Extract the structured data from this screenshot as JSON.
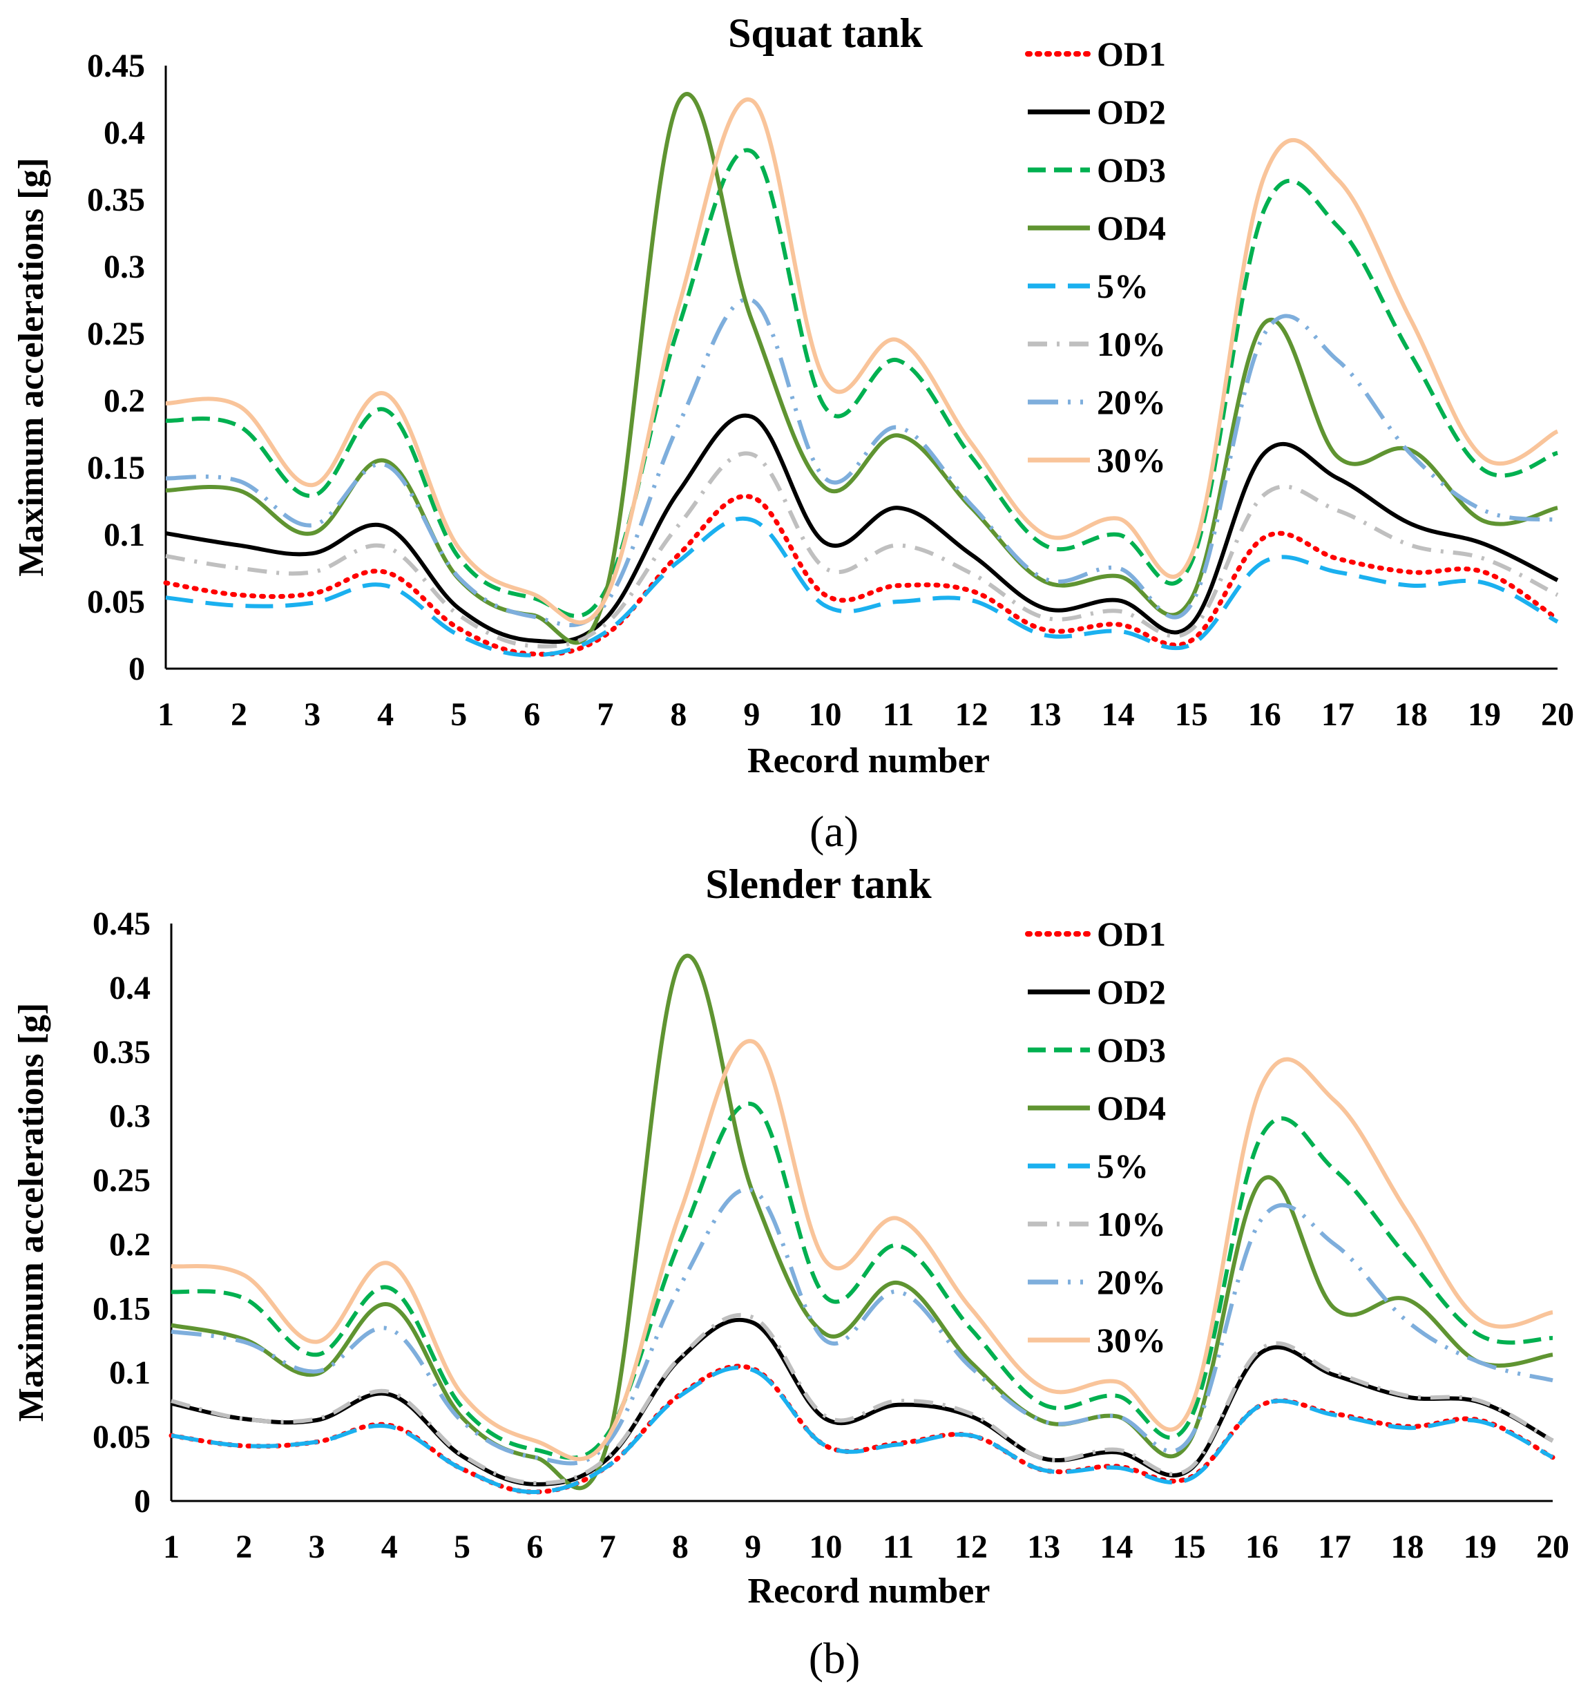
{
  "chart_data": [
    {
      "type": "line",
      "title": "Squat tank",
      "panel_label": "(a)",
      "xlabel": "Record number",
      "ylabel": "Maximum accelerations [g]",
      "xlim": [
        1,
        20
      ],
      "ylim": [
        0,
        0.45
      ],
      "x": [
        1,
        2,
        3,
        4,
        5,
        6,
        7,
        8,
        9,
        10,
        11,
        12,
        13,
        14,
        15,
        16,
        17,
        18,
        19,
        20
      ],
      "x_ticks": [
        "1",
        "2",
        "3",
        "4",
        "5",
        "6",
        "7",
        "8",
        "9",
        "10",
        "11",
        "12",
        "13",
        "14",
        "15",
        "16",
        "17",
        "18",
        "19",
        "20"
      ],
      "y_ticks": [
        "0",
        "0.05",
        "0.1",
        "0.15",
        "0.2",
        "0.25",
        "0.3",
        "0.35",
        "0.4",
        "0.45"
      ],
      "legend_position": "top-right",
      "grid": false,
      "series": [
        {
          "name": "OD1",
          "color": "#ff0000",
          "style": "dotted",
          "values": [
            0.064,
            0.055,
            0.056,
            0.072,
            0.03,
            0.011,
            0.025,
            0.085,
            0.128,
            0.055,
            0.062,
            0.058,
            0.029,
            0.033,
            0.021,
            0.098,
            0.082,
            0.072,
            0.072,
            0.037
          ]
        },
        {
          "name": "OD2",
          "color": "#000000",
          "style": "solid",
          "values": [
            0.101,
            0.092,
            0.086,
            0.106,
            0.045,
            0.021,
            0.037,
            0.132,
            0.188,
            0.094,
            0.12,
            0.085,
            0.045,
            0.051,
            0.033,
            0.161,
            0.142,
            0.108,
            0.093,
            0.066
          ]
        },
        {
          "name": "OD3",
          "color": "#00b050",
          "style": "dashed",
          "values": [
            0.185,
            0.181,
            0.129,
            0.193,
            0.083,
            0.053,
            0.058,
            0.255,
            0.386,
            0.195,
            0.23,
            0.158,
            0.092,
            0.1,
            0.079,
            0.343,
            0.33,
            0.234,
            0.148,
            0.161
          ]
        },
        {
          "name": "OD4",
          "color": "#5f9431",
          "style": "solid",
          "values": [
            0.133,
            0.133,
            0.101,
            0.155,
            0.067,
            0.04,
            0.055,
            0.423,
            0.26,
            0.135,
            0.174,
            0.12,
            0.065,
            0.069,
            0.052,
            0.258,
            0.158,
            0.163,
            0.11,
            0.12
          ]
        },
        {
          "name": "5%",
          "color": "#1ab0ef",
          "style": "longdash",
          "values": [
            0.053,
            0.047,
            0.049,
            0.062,
            0.025,
            0.01,
            0.027,
            0.08,
            0.111,
            0.047,
            0.05,
            0.051,
            0.025,
            0.028,
            0.018,
            0.08,
            0.072,
            0.062,
            0.064,
            0.035
          ]
        },
        {
          "name": "10%",
          "color": "#bfbfbf",
          "style": "dashdot",
          "values": [
            0.084,
            0.075,
            0.072,
            0.091,
            0.04,
            0.017,
            0.033,
            0.107,
            0.16,
            0.075,
            0.092,
            0.071,
            0.038,
            0.043,
            0.029,
            0.13,
            0.118,
            0.092,
            0.082,
            0.055
          ]
        },
        {
          "name": "20%",
          "color": "#7eaedc",
          "style": "longdashdotdot",
          "values": [
            0.142,
            0.14,
            0.107,
            0.152,
            0.068,
            0.039,
            0.048,
            0.182,
            0.275,
            0.142,
            0.18,
            0.122,
            0.067,
            0.075,
            0.048,
            0.25,
            0.23,
            0.16,
            0.118,
            0.111
          ]
        },
        {
          "name": "30%",
          "color": "#f9c49a",
          "style": "solid",
          "values": [
            0.198,
            0.196,
            0.137,
            0.205,
            0.09,
            0.056,
            0.052,
            0.27,
            0.424,
            0.215,
            0.245,
            0.168,
            0.1,
            0.112,
            0.084,
            0.368,
            0.365,
            0.26,
            0.157,
            0.177
          ]
        }
      ]
    },
    {
      "type": "line",
      "title": "Slender tank",
      "panel_label": "(b)",
      "xlabel": "Record number",
      "ylabel": "Maximum accelerations [g]",
      "xlim": [
        1,
        20
      ],
      "ylim": [
        0,
        0.45
      ],
      "x": [
        1,
        2,
        3,
        4,
        5,
        6,
        7,
        8,
        9,
        10,
        11,
        12,
        13,
        14,
        15,
        16,
        17,
        18,
        19,
        20
      ],
      "x_ticks": [
        "1",
        "2",
        "3",
        "4",
        "5",
        "6",
        "7",
        "8",
        "9",
        "10",
        "11",
        "12",
        "13",
        "14",
        "15",
        "16",
        "17",
        "18",
        "19",
        "20"
      ],
      "y_ticks": [
        "0",
        "0.05",
        "0.1",
        "0.15",
        "0.2",
        "0.25",
        "0.3",
        "0.35",
        "0.4",
        "0.45"
      ],
      "legend_position": "top-right",
      "grid": false,
      "series": [
        {
          "name": "OD1",
          "color": "#ff0000",
          "style": "dotted",
          "values": [
            0.051,
            0.043,
            0.046,
            0.059,
            0.025,
            0.007,
            0.027,
            0.083,
            0.103,
            0.043,
            0.045,
            0.051,
            0.024,
            0.027,
            0.018,
            0.075,
            0.068,
            0.058,
            0.063,
            0.034
          ]
        },
        {
          "name": "OD2",
          "color": "#000000",
          "style": "solid",
          "values": [
            0.076,
            0.064,
            0.063,
            0.083,
            0.035,
            0.013,
            0.033,
            0.111,
            0.139,
            0.064,
            0.075,
            0.066,
            0.033,
            0.038,
            0.024,
            0.116,
            0.098,
            0.081,
            0.077,
            0.047
          ]
        },
        {
          "name": "OD3",
          "color": "#00b050",
          "style": "dashed",
          "values": [
            0.163,
            0.158,
            0.114,
            0.166,
            0.073,
            0.04,
            0.052,
            0.203,
            0.309,
            0.159,
            0.199,
            0.134,
            0.075,
            0.082,
            0.062,
            0.285,
            0.258,
            0.19,
            0.129,
            0.127
          ]
        },
        {
          "name": "OD4",
          "color": "#5f9431",
          "style": "solid",
          "values": [
            0.137,
            0.126,
            0.099,
            0.153,
            0.065,
            0.034,
            0.045,
            0.42,
            0.24,
            0.13,
            0.17,
            0.108,
            0.062,
            0.066,
            0.046,
            0.25,
            0.15,
            0.157,
            0.108,
            0.114
          ]
        },
        {
          "name": "5%",
          "color": "#1ab0ef",
          "style": "longdash",
          "values": [
            0.051,
            0.043,
            0.046,
            0.058,
            0.025,
            0.007,
            0.027,
            0.082,
            0.102,
            0.043,
            0.044,
            0.051,
            0.024,
            0.026,
            0.017,
            0.075,
            0.067,
            0.057,
            0.062,
            0.034
          ]
        },
        {
          "name": "10%",
          "color": "#bfbfbf",
          "style": "dashdot",
          "values": [
            0.078,
            0.064,
            0.064,
            0.085,
            0.036,
            0.014,
            0.034,
            0.112,
            0.143,
            0.066,
            0.078,
            0.068,
            0.033,
            0.04,
            0.025,
            0.119,
            0.1,
            0.082,
            0.078,
            0.047
          ]
        },
        {
          "name": "20%",
          "color": "#7eaedc",
          "style": "longdashdotdot",
          "values": [
            0.132,
            0.124,
            0.101,
            0.134,
            0.062,
            0.034,
            0.045,
            0.168,
            0.242,
            0.125,
            0.163,
            0.104,
            0.062,
            0.066,
            0.048,
            0.22,
            0.2,
            0.14,
            0.108,
            0.094
          ]
        },
        {
          "name": "30%",
          "color": "#f9c49a",
          "style": "solid",
          "values": [
            0.183,
            0.176,
            0.124,
            0.185,
            0.083,
            0.047,
            0.049,
            0.225,
            0.358,
            0.187,
            0.22,
            0.15,
            0.088,
            0.093,
            0.07,
            0.324,
            0.312,
            0.225,
            0.141,
            0.147
          ]
        }
      ]
    }
  ]
}
